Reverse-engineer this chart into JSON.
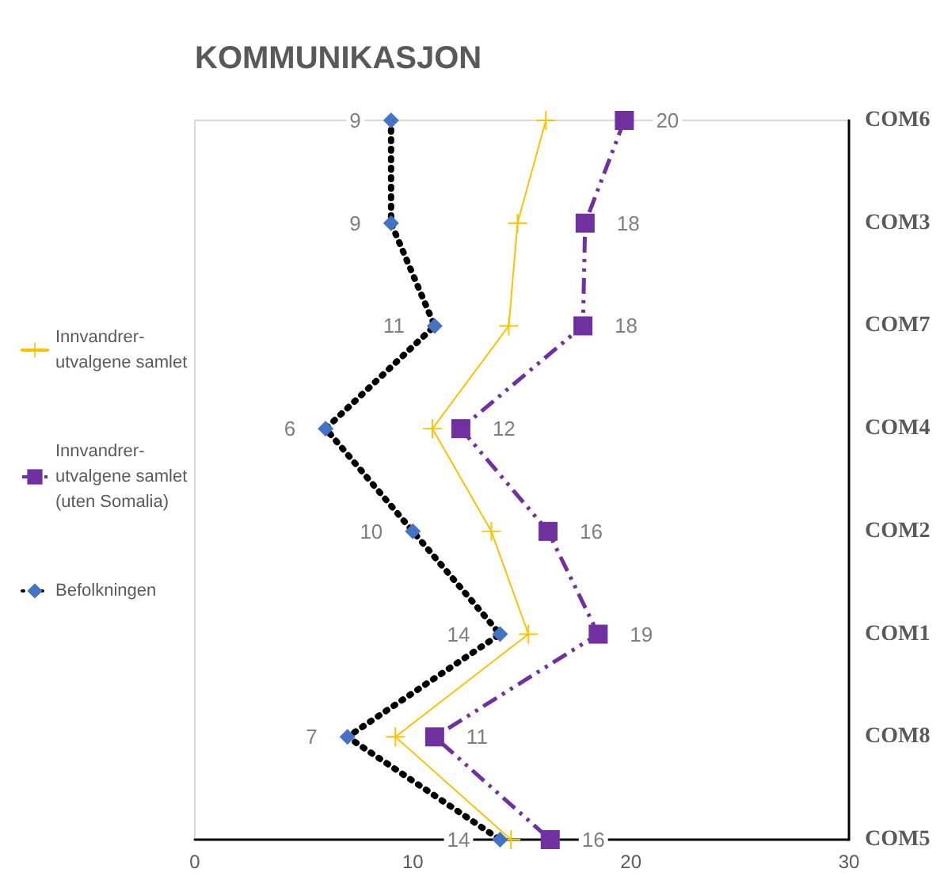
{
  "chart_data": {
    "type": "line",
    "orientation": "horizontal",
    "title": "KOMMUNIKASJON",
    "categories": [
      "COM6",
      "COM3",
      "COM7",
      "COM4",
      "COM2",
      "COM1",
      "COM8",
      "COM5"
    ],
    "xlim": [
      0,
      30
    ],
    "xticks": [
      0,
      10,
      20,
      30
    ],
    "grid": false,
    "legend": "left",
    "series": [
      {
        "name": "Innvandrer-utvalgene samlet",
        "color": "#ffc000",
        "marker": "cross",
        "line_style": "solid",
        "values": [
          16.1,
          14.8,
          14.4,
          10.9,
          13.6,
          15.3,
          9.2,
          14.5
        ]
      },
      {
        "name": "Innvandrer-utvalgene samlet (uten Somalia)",
        "color": "#7030a0",
        "marker": "square",
        "line_style": "dashed",
        "values": [
          19.7,
          17.9,
          17.8,
          12.2,
          16.2,
          18.5,
          11.0,
          16.3
        ],
        "value_labels": [
          "20",
          "18",
          "18",
          "12",
          "16",
          "19",
          "11",
          "16"
        ]
      },
      {
        "name": "Befolkningen",
        "color": "#000000",
        "colors": [
          "#4472c4",
          "#4472c4",
          "#4472c4",
          "#4472c4",
          "#4472c4",
          "#4472c4",
          "#4472c4",
          "#4472c4"
        ],
        "marker": "diamond",
        "line_style": "dotted",
        "values": [
          9,
          9,
          11,
          6,
          10,
          14,
          7,
          14
        ],
        "value_labels": [
          "9",
          "9",
          "11",
          "6",
          "10",
          "14",
          "7",
          "14"
        ]
      }
    ]
  }
}
